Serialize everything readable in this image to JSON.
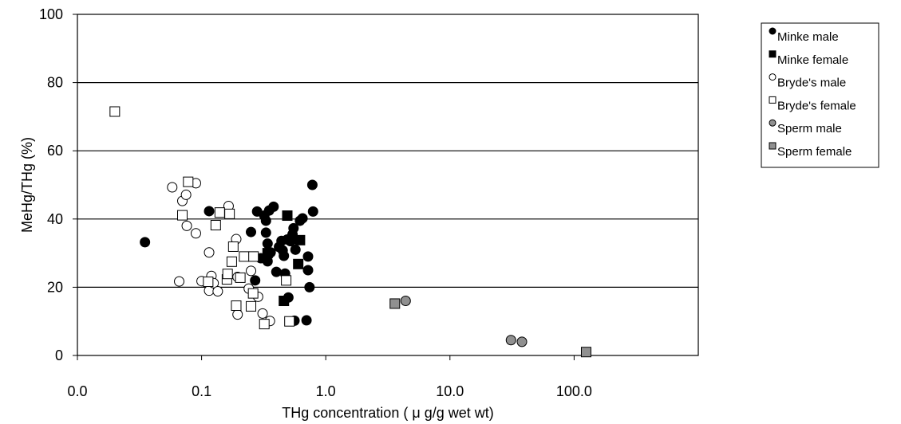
{
  "chart_data": {
    "type": "scatter",
    "xscale": "log",
    "xlim": [
      0.01,
      1000
    ],
    "ylim": [
      0,
      100
    ],
    "grid": "horizontal",
    "xlabel": "THg concentration ( μ g/g wet wt)",
    "ylabel": "MeHg/THg (%)",
    "x_tick_labels": [
      "0.0",
      "0.1",
      "1.0",
      "10.0",
      "100.0"
    ],
    "x_tick_values": [
      0.01,
      0.1,
      1,
      10,
      100
    ],
    "y_ticks": [
      0,
      20,
      40,
      60,
      80,
      100
    ],
    "legend_position": "right",
    "series": [
      {
        "name": "Minke male",
        "marker": "circle",
        "fill": "#000000",
        "stroke": "#000000",
        "points": [
          [
            0.035,
            33.2
          ],
          [
            0.115,
            42.3
          ],
          [
            0.25,
            36.2
          ],
          [
            0.27,
            22.0
          ],
          [
            0.28,
            42.2
          ],
          [
            0.3,
            28.5
          ],
          [
            0.32,
            41.0
          ],
          [
            0.33,
            39.5
          ],
          [
            0.33,
            36.0
          ],
          [
            0.34,
            27.6
          ],
          [
            0.34,
            32.8
          ],
          [
            0.35,
            42.5
          ],
          [
            0.36,
            30.2
          ],
          [
            0.38,
            43.6
          ],
          [
            0.4,
            24.5
          ],
          [
            0.42,
            31.8
          ],
          [
            0.44,
            33.6
          ],
          [
            0.45,
            30.8
          ],
          [
            0.46,
            29.2
          ],
          [
            0.47,
            24.0
          ],
          [
            0.49,
            34.0
          ],
          [
            0.5,
            17.0
          ],
          [
            0.52,
            33.5
          ],
          [
            0.54,
            35.5
          ],
          [
            0.55,
            37.3
          ],
          [
            0.56,
            10.2
          ],
          [
            0.57,
            31.0
          ],
          [
            0.62,
            39.5
          ],
          [
            0.65,
            40.2
          ],
          [
            0.7,
            10.3
          ],
          [
            0.72,
            25.0
          ],
          [
            0.72,
            29.0
          ],
          [
            0.74,
            20.0
          ],
          [
            0.78,
            50.0
          ],
          [
            0.79,
            42.2
          ]
        ]
      },
      {
        "name": "Minke female",
        "marker": "square",
        "fill": "#000000",
        "stroke": "#000000",
        "points": [
          [
            0.34,
            30.0
          ],
          [
            0.46,
            16.0
          ],
          [
            0.49,
            41.0
          ],
          [
            0.6,
            26.8
          ],
          [
            0.62,
            33.8
          ]
        ]
      },
      {
        "name": "Bryde's male",
        "marker": "circle",
        "fill": "#ffffff",
        "stroke": "#000000",
        "points": [
          [
            0.058,
            49.3
          ],
          [
            0.066,
            21.7
          ],
          [
            0.07,
            45.3
          ],
          [
            0.075,
            47.1
          ],
          [
            0.076,
            38.0
          ],
          [
            0.09,
            50.5
          ],
          [
            0.09,
            35.8
          ],
          [
            0.1,
            21.8
          ],
          [
            0.115,
            30.2
          ],
          [
            0.115,
            19.0
          ],
          [
            0.12,
            23.3
          ],
          [
            0.125,
            21.2
          ],
          [
            0.135,
            18.8
          ],
          [
            0.165,
            43.8
          ],
          [
            0.19,
            34.1
          ],
          [
            0.195,
            12.0
          ],
          [
            0.195,
            23.0
          ],
          [
            0.24,
            19.6
          ],
          [
            0.25,
            24.8
          ],
          [
            0.285,
            17.2
          ],
          [
            0.31,
            12.3
          ],
          [
            0.355,
            10.1
          ]
        ]
      },
      {
        "name": "Bryde's female",
        "marker": "square",
        "fill": "#ffffff",
        "stroke": "#000000",
        "points": [
          [
            0.02,
            71.5
          ],
          [
            0.07,
            41.1
          ],
          [
            0.078,
            50.9
          ],
          [
            0.113,
            21.6
          ],
          [
            0.13,
            38.2
          ],
          [
            0.14,
            41.9
          ],
          [
            0.16,
            22.3
          ],
          [
            0.162,
            23.9
          ],
          [
            0.168,
            41.5
          ],
          [
            0.175,
            27.5
          ],
          [
            0.18,
            31.9
          ],
          [
            0.19,
            14.6
          ],
          [
            0.205,
            22.8
          ],
          [
            0.22,
            29.0
          ],
          [
            0.25,
            14.4
          ],
          [
            0.26,
            18.2
          ],
          [
            0.262,
            29.0
          ],
          [
            0.32,
            9.2
          ],
          [
            0.48,
            22.0
          ],
          [
            0.51,
            10.0
          ]
        ]
      },
      {
        "name": "Sperm male",
        "marker": "circle",
        "fill": "#909090",
        "stroke": "#000000",
        "points": [
          [
            4.4,
            16.0
          ],
          [
            31.0,
            4.5
          ],
          [
            38.0,
            4.0
          ]
        ]
      },
      {
        "name": "Sperm female",
        "marker": "square",
        "fill": "#909090",
        "stroke": "#000000",
        "points": [
          [
            3.6,
            15.2
          ],
          [
            125.0,
            1.0
          ]
        ]
      }
    ]
  }
}
